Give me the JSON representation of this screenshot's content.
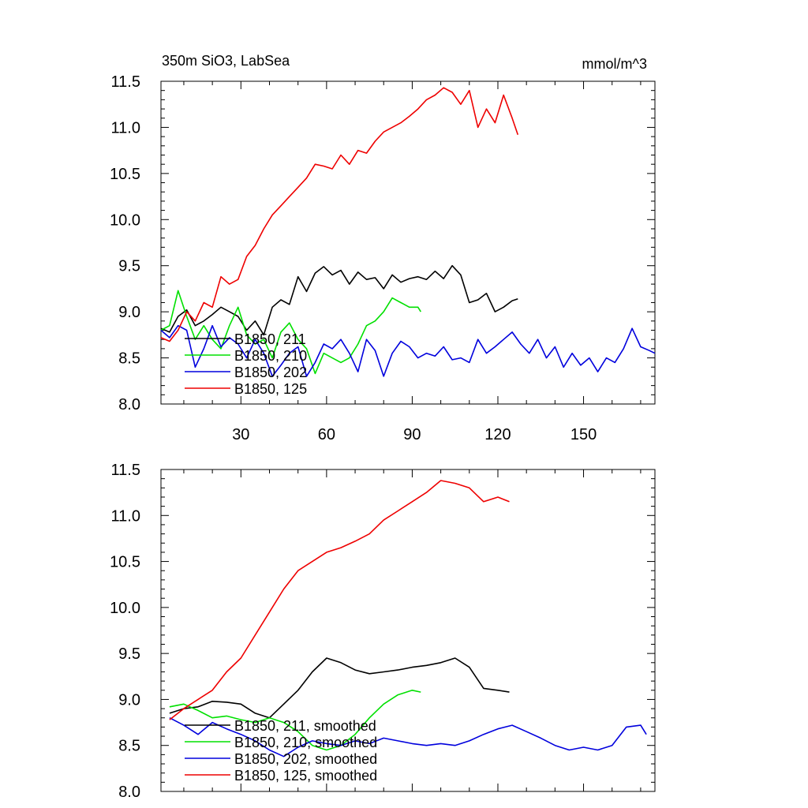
{
  "chart_data": [
    {
      "type": "line",
      "title": "350m SiO3, LabSea",
      "units": "mmol/m^3",
      "xlim": [
        2,
        175
      ],
      "ylim": [
        8.0,
        11.5
      ],
      "xticks": [
        30,
        60,
        90,
        120,
        150
      ],
      "xtick_labels": [
        "30",
        "60",
        "90",
        "120",
        "150"
      ],
      "yticks": [
        8.0,
        8.5,
        9.0,
        9.5,
        10.0,
        10.5,
        11.0,
        11.5
      ],
      "ytick_labels": [
        "8.0",
        "8.5",
        "9.0",
        "9.5",
        "10.0",
        "10.5",
        "11.0",
        "11.5"
      ],
      "grid": false,
      "legend_position": "bottom-left",
      "series": [
        {
          "name": "B1850, 211",
          "color": "#000000",
          "x": [
            2,
            5,
            8,
            11,
            14,
            17,
            20,
            23,
            26,
            29,
            32,
            35,
            38,
            41,
            44,
            47,
            50,
            53,
            56,
            59,
            62,
            65,
            68,
            71,
            74,
            77,
            80,
            83,
            86,
            89,
            92,
            95,
            98,
            101,
            104,
            107,
            110,
            113,
            116,
            119,
            122,
            125,
            127
          ],
          "y": [
            8.82,
            8.78,
            8.95,
            9.02,
            8.85,
            8.9,
            8.97,
            9.05,
            9.0,
            8.95,
            8.8,
            8.9,
            8.75,
            9.05,
            9.13,
            9.08,
            9.38,
            9.22,
            9.42,
            9.49,
            9.4,
            9.45,
            9.3,
            9.43,
            9.35,
            9.37,
            9.25,
            9.4,
            9.32,
            9.36,
            9.38,
            9.35,
            9.44,
            9.36,
            9.5,
            9.4,
            9.1,
            9.13,
            9.2,
            9.0,
            9.05,
            9.12,
            9.14
          ]
        },
        {
          "name": "B1850, 210",
          "color": "#00e000",
          "x": [
            2,
            5,
            8,
            11,
            14,
            17,
            20,
            23,
            26,
            29,
            32,
            35,
            38,
            41,
            44,
            47,
            50,
            53,
            56,
            59,
            62,
            65,
            68,
            71,
            74,
            77,
            80,
            83,
            86,
            89,
            92,
            93
          ],
          "y": [
            8.8,
            8.85,
            9.23,
            8.95,
            8.7,
            8.85,
            8.7,
            8.6,
            8.85,
            9.05,
            8.75,
            8.65,
            8.7,
            8.5,
            8.78,
            8.88,
            8.7,
            8.6,
            8.33,
            8.55,
            8.5,
            8.45,
            8.5,
            8.65,
            8.85,
            8.9,
            9.0,
            9.15,
            9.1,
            9.05,
            9.05,
            9.0
          ]
        },
        {
          "name": "B1850, 202",
          "color": "#0000dd",
          "x": [
            2,
            5,
            8,
            11,
            14,
            17,
            20,
            23,
            26,
            29,
            32,
            35,
            38,
            41,
            44,
            47,
            50,
            53,
            56,
            59,
            62,
            65,
            68,
            71,
            74,
            77,
            80,
            83,
            86,
            89,
            92,
            95,
            98,
            101,
            104,
            107,
            110,
            113,
            116,
            119,
            122,
            125,
            128,
            131,
            134,
            137,
            140,
            143,
            146,
            149,
            152,
            155,
            158,
            161,
            164,
            167,
            170,
            173,
            175
          ],
          "y": [
            8.8,
            8.72,
            8.85,
            8.8,
            8.4,
            8.6,
            8.85,
            8.62,
            8.72,
            8.65,
            8.5,
            8.7,
            8.55,
            8.3,
            8.42,
            8.55,
            8.62,
            8.3,
            8.45,
            8.65,
            8.6,
            8.7,
            8.55,
            8.35,
            8.7,
            8.58,
            8.3,
            8.55,
            8.68,
            8.62,
            8.5,
            8.55,
            8.52,
            8.62,
            8.48,
            8.5,
            8.45,
            8.7,
            8.55,
            8.62,
            8.7,
            8.78,
            8.65,
            8.55,
            8.7,
            8.5,
            8.62,
            8.4,
            8.55,
            8.42,
            8.5,
            8.35,
            8.5,
            8.45,
            8.6,
            8.82,
            8.62,
            8.58,
            8.55
          ]
        },
        {
          "name": "B1850, 125",
          "color": "#ee0000",
          "x": [
            2,
            5,
            8,
            11,
            14,
            17,
            20,
            23,
            26,
            29,
            32,
            35,
            38,
            41,
            44,
            47,
            50,
            53,
            56,
            59,
            62,
            65,
            68,
            71,
            74,
            77,
            80,
            83,
            86,
            89,
            92,
            95,
            98,
            101,
            104,
            107,
            110,
            113,
            116,
            119,
            122,
            125,
            127
          ],
          "y": [
            8.72,
            8.68,
            8.8,
            9.0,
            8.9,
            9.1,
            9.05,
            9.38,
            9.3,
            9.35,
            9.6,
            9.72,
            9.9,
            10.05,
            10.15,
            10.25,
            10.35,
            10.45,
            10.6,
            10.58,
            10.55,
            10.7,
            10.6,
            10.75,
            10.72,
            10.85,
            10.95,
            11.0,
            11.05,
            11.12,
            11.2,
            11.3,
            11.35,
            11.43,
            11.38,
            11.25,
            11.4,
            11.0,
            11.2,
            11.05,
            11.35,
            11.1,
            10.92
          ]
        }
      ]
    },
    {
      "type": "line",
      "xlim": [
        2,
        175
      ],
      "ylim": [
        8.0,
        11.5
      ],
      "xticks": [
        30,
        60,
        90,
        120,
        150
      ],
      "yticks": [
        8.0,
        8.5,
        9.0,
        9.5,
        10.0,
        10.5,
        11.0,
        11.5
      ],
      "ytick_labels": [
        "8.0",
        "8.5",
        "9.0",
        "9.5",
        "10.0",
        "10.5",
        "11.0",
        "11.5"
      ],
      "grid": false,
      "legend_position": "bottom-left",
      "series": [
        {
          "name": "B1850, 211, smoothed",
          "color": "#000000",
          "x": [
            5,
            10,
            15,
            20,
            25,
            30,
            35,
            40,
            45,
            50,
            55,
            60,
            65,
            70,
            75,
            80,
            85,
            90,
            95,
            100,
            105,
            110,
            115,
            120,
            124
          ],
          "y": [
            8.85,
            8.9,
            8.92,
            8.98,
            8.97,
            8.95,
            8.85,
            8.8,
            8.95,
            9.1,
            9.3,
            9.45,
            9.4,
            9.32,
            9.28,
            9.3,
            9.32,
            9.35,
            9.37,
            9.4,
            9.45,
            9.35,
            9.12,
            9.1,
            9.08
          ]
        },
        {
          "name": "B1850, 210, smoothed",
          "color": "#00e000",
          "x": [
            5,
            10,
            15,
            20,
            25,
            30,
            35,
            40,
            45,
            50,
            55,
            60,
            65,
            70,
            75,
            80,
            85,
            90,
            93
          ],
          "y": [
            8.92,
            8.95,
            8.88,
            8.8,
            8.82,
            8.78,
            8.75,
            8.8,
            8.75,
            8.65,
            8.5,
            8.45,
            8.5,
            8.62,
            8.8,
            8.95,
            9.05,
            9.1,
            9.08
          ]
        },
        {
          "name": "B1850, 202, smoothed",
          "color": "#0000dd",
          "x": [
            5,
            10,
            15,
            20,
            25,
            30,
            35,
            40,
            45,
            50,
            55,
            60,
            65,
            70,
            75,
            80,
            85,
            90,
            95,
            100,
            105,
            110,
            115,
            120,
            125,
            130,
            135,
            140,
            145,
            150,
            155,
            160,
            165,
            170,
            172
          ],
          "y": [
            8.8,
            8.72,
            8.62,
            8.75,
            8.68,
            8.62,
            8.55,
            8.45,
            8.38,
            8.48,
            8.55,
            8.52,
            8.5,
            8.55,
            8.52,
            8.58,
            8.55,
            8.52,
            8.5,
            8.52,
            8.5,
            8.55,
            8.62,
            8.68,
            8.72,
            8.65,
            8.58,
            8.5,
            8.45,
            8.48,
            8.45,
            8.5,
            8.7,
            8.72,
            8.62
          ]
        },
        {
          "name": "B1850, 125, smoothed",
          "color": "#ee0000",
          "x": [
            5,
            10,
            15,
            20,
            25,
            30,
            35,
            40,
            45,
            50,
            55,
            60,
            65,
            70,
            75,
            80,
            85,
            90,
            95,
            100,
            105,
            110,
            115,
            120,
            124
          ],
          "y": [
            8.78,
            8.9,
            9.0,
            9.1,
            9.3,
            9.45,
            9.7,
            9.95,
            10.2,
            10.4,
            10.5,
            10.6,
            10.65,
            10.72,
            10.8,
            10.95,
            11.05,
            11.15,
            11.25,
            11.38,
            11.35,
            11.3,
            11.15,
            11.2,
            11.15
          ]
        }
      ]
    }
  ]
}
